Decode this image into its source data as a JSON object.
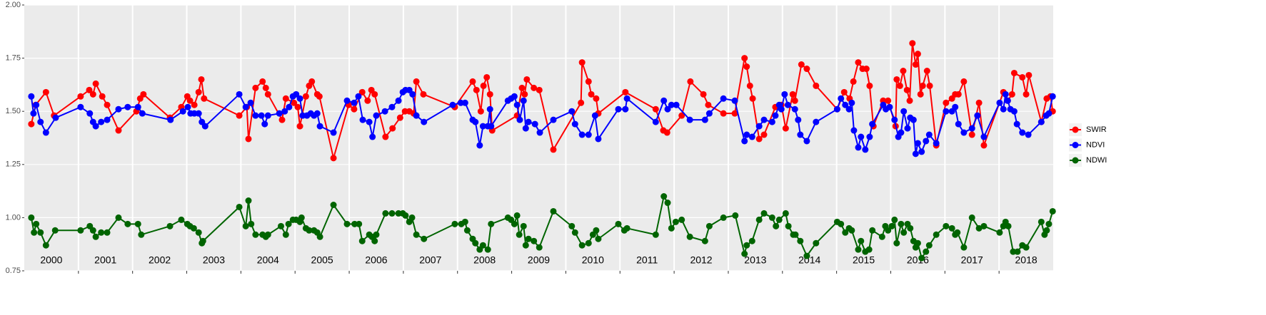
{
  "chart_data": {
    "type": "line",
    "xlim": [
      2000,
      2019
    ],
    "ylim": [
      0.75,
      2.0
    ],
    "yticks": [
      {
        "value": 0.75,
        "label": "0.75"
      },
      {
        "value": 1.0,
        "label": "1.00"
      },
      {
        "value": 1.25,
        "label": "1.25"
      },
      {
        "value": 1.5,
        "label": "1.50"
      },
      {
        "value": 1.75,
        "label": "1.75"
      },
      {
        "value": 2.0,
        "label": "2.00"
      }
    ],
    "xticks": [
      {
        "value": 2000.5,
        "label": "2000"
      },
      {
        "value": 2001.5,
        "label": "2001"
      },
      {
        "value": 2002.5,
        "label": "2002"
      },
      {
        "value": 2003.5,
        "label": "2003"
      },
      {
        "value": 2004.5,
        "label": "2004"
      },
      {
        "value": 2005.5,
        "label": "2005"
      },
      {
        "value": 2006.5,
        "label": "2006"
      },
      {
        "value": 2007.5,
        "label": "2007"
      },
      {
        "value": 2008.5,
        "label": "2008"
      },
      {
        "value": 2009.5,
        "label": "2009"
      },
      {
        "value": 2010.5,
        "label": "2010"
      },
      {
        "value": 2011.5,
        "label": "2011"
      },
      {
        "value": 2012.5,
        "label": "2012"
      },
      {
        "value": 2013.5,
        "label": "2013"
      },
      {
        "value": 2014.5,
        "label": "2014"
      },
      {
        "value": 2015.5,
        "label": "2015"
      },
      {
        "value": 2016.5,
        "label": "2016"
      },
      {
        "value": 2017.5,
        "label": "2017"
      },
      {
        "value": 2018.5,
        "label": "2018"
      }
    ],
    "grid": true,
    "legend_position": "right",
    "series": [
      {
        "name": "SWIR",
        "color": "#ff0000",
        "x": [
          2000.13,
          2000.21,
          2000.4,
          2000.55,
          2001.04,
          2001.2,
          2001.27,
          2001.32,
          2001.44,
          2001.53,
          2001.74,
          2002.07,
          2002.14,
          2002.2,
          2002.69,
          2002.9,
          2003.01,
          2003.06,
          2003.14,
          2003.22,
          2003.27,
          2003.32,
          2003.97,
          2004.11,
          2004.14,
          2004.27,
          2004.4,
          2004.46,
          2004.5,
          2004.76,
          2004.83,
          2004.98,
          2005.05,
          2005.09,
          2005.2,
          2005.26,
          2005.31,
          2005.41,
          2005.45,
          2005.71,
          2005.99,
          2006.09,
          2006.24,
          2006.34,
          2006.41,
          2006.47,
          2006.67,
          2006.8,
          2006.94,
          2007.03,
          2007.11,
          2007.19,
          2007.24,
          2007.37,
          2007.95,
          2008.28,
          2008.35,
          2008.43,
          2008.48,
          2008.54,
          2008.6,
          2008.64,
          2009.1,
          2009.19,
          2009.24,
          2009.28,
          2009.41,
          2009.51,
          2009.77,
          2010.28,
          2010.3,
          2010.42,
          2010.47,
          2010.56,
          2010.6,
          2011.1,
          2011.66,
          2011.8,
          2011.87,
          2012.14,
          2012.3,
          2012.54,
          2012.63,
          2012.91,
          2013.12,
          2013.3,
          2013.34,
          2013.4,
          2013.45,
          2013.57,
          2013.66,
          2013.87,
          2013.98,
          2014.06,
          2014.19,
          2014.23,
          2014.35,
          2014.45,
          2014.62,
          2015.01,
          2015.14,
          2015.24,
          2015.31,
          2015.4,
          2015.48,
          2015.55,
          2015.61,
          2015.68,
          2015.86,
          2015.95,
          2016.09,
          2016.11,
          2016.17,
          2016.23,
          2016.3,
          2016.35,
          2016.4,
          2016.46,
          2016.5,
          2016.55,
          2016.59,
          2016.67,
          2016.72,
          2016.84,
          2017.02,
          2017.13,
          2017.19,
          2017.25,
          2017.35,
          2017.5,
          2017.63,
          2017.72,
          2018.08,
          2018.16,
          2018.24,
          2018.28,
          2018.43,
          2018.5,
          2018.55,
          2018.78,
          2018.88,
          2018.95,
          2018.99
        ],
        "values": [
          1.44,
          1.53,
          1.59,
          1.48,
          1.57,
          1.6,
          1.58,
          1.63,
          1.57,
          1.53,
          1.41,
          1.5,
          1.56,
          1.58,
          1.47,
          1.52,
          1.57,
          1.55,
          1.53,
          1.59,
          1.65,
          1.56,
          1.48,
          1.52,
          1.37,
          1.61,
          1.64,
          1.61,
          1.58,
          1.46,
          1.56,
          1.54,
          1.52,
          1.43,
          1.57,
          1.62,
          1.64,
          1.58,
          1.57,
          1.28,
          1.53,
          1.51,
          1.59,
          1.55,
          1.6,
          1.58,
          1.38,
          1.42,
          1.47,
          1.5,
          1.5,
          1.49,
          1.64,
          1.58,
          1.52,
          1.64,
          1.6,
          1.5,
          1.62,
          1.66,
          1.58,
          1.41,
          1.48,
          1.61,
          1.58,
          1.65,
          1.61,
          1.6,
          1.32,
          1.54,
          1.73,
          1.64,
          1.58,
          1.56,
          1.49,
          1.59,
          1.51,
          1.41,
          1.4,
          1.48,
          1.64,
          1.58,
          1.53,
          1.49,
          1.49,
          1.75,
          1.71,
          1.62,
          1.56,
          1.37,
          1.39,
          1.52,
          1.53,
          1.42,
          1.58,
          1.55,
          1.72,
          1.7,
          1.62,
          1.51,
          1.59,
          1.56,
          1.64,
          1.73,
          1.7,
          1.7,
          1.62,
          1.43,
          1.55,
          1.55,
          1.43,
          1.65,
          1.62,
          1.69,
          1.6,
          1.55,
          1.82,
          1.72,
          1.77,
          1.58,
          1.62,
          1.69,
          1.62,
          1.34,
          1.54,
          1.56,
          1.58,
          1.58,
          1.64,
          1.39,
          1.54,
          1.34,
          1.59,
          1.55,
          1.58,
          1.68,
          1.66,
          1.58,
          1.67,
          1.45,
          1.56,
          1.57,
          1.5
        ]
      },
      {
        "name": "NDVI",
        "color": "#0000ff",
        "x": [
          2000.13,
          2000.17,
          2000.22,
          2000.3,
          2000.4,
          2000.58,
          2001.04,
          2001.21,
          2001.27,
          2001.32,
          2001.42,
          2001.53,
          2001.74,
          2001.91,
          2002.1,
          2002.18,
          2002.7,
          2002.93,
          2003.02,
          2003.07,
          2003.14,
          2003.22,
          2003.28,
          2003.34,
          2003.97,
          2004.09,
          2004.18,
          2004.27,
          2004.38,
          2004.44,
          2004.5,
          2004.71,
          2004.81,
          2004.89,
          2004.96,
          2005.02,
          2005.09,
          2005.14,
          2005.22,
          2005.29,
          2005.35,
          2005.41,
          2005.46,
          2005.71,
          2005.96,
          2006.09,
          2006.17,
          2006.25,
          2006.37,
          2006.43,
          2006.5,
          2006.66,
          2006.79,
          2006.91,
          2006.99,
          2007.04,
          2007.11,
          2007.17,
          2007.24,
          2007.38,
          2007.91,
          2008.06,
          2008.14,
          2008.28,
          2008.33,
          2008.41,
          2008.47,
          2008.56,
          2008.6,
          2008.62,
          2008.93,
          2008.99,
          2009.05,
          2009.1,
          2009.15,
          2009.22,
          2009.26,
          2009.31,
          2009.43,
          2009.52,
          2009.77,
          2010.11,
          2010.17,
          2010.3,
          2010.42,
          2010.54,
          2010.6,
          2010.97,
          2011.1,
          2011.13,
          2011.66,
          2011.81,
          2011.88,
          2011.95,
          2012.04,
          2012.29,
          2012.57,
          2012.65,
          2012.91,
          2013.12,
          2013.3,
          2013.34,
          2013.44,
          2013.57,
          2013.66,
          2013.81,
          2013.87,
          2013.94,
          2013.98,
          2014.04,
          2014.1,
          2014.23,
          2014.29,
          2014.33,
          2014.45,
          2014.62,
          2015.01,
          2015.08,
          2015.16,
          2015.23,
          2015.28,
          2015.32,
          2015.4,
          2015.45,
          2015.53,
          2015.61,
          2015.66,
          2015.86,
          2015.91,
          2015.98,
          2016.07,
          2016.14,
          2016.19,
          2016.24,
          2016.31,
          2016.36,
          2016.42,
          2016.46,
          2016.5,
          2016.57,
          2016.65,
          2016.71,
          2016.84,
          2017.02,
          2017.13,
          2017.19,
          2017.25,
          2017.35,
          2017.5,
          2017.6,
          2017.72,
          2018.01,
          2018.08,
          2018.12,
          2018.16,
          2018.21,
          2018.28,
          2018.33,
          2018.43,
          2018.54,
          2018.78,
          2018.87,
          2018.92,
          2018.99
        ],
        "values": [
          1.57,
          1.49,
          1.53,
          1.45,
          1.4,
          1.47,
          1.52,
          1.49,
          1.45,
          1.43,
          1.45,
          1.46,
          1.51,
          1.52,
          1.52,
          1.49,
          1.46,
          1.5,
          1.52,
          1.49,
          1.49,
          1.49,
          1.45,
          1.43,
          1.58,
          1.52,
          1.54,
          1.48,
          1.48,
          1.44,
          1.48,
          1.49,
          1.5,
          1.52,
          1.57,
          1.58,
          1.56,
          1.48,
          1.48,
          1.49,
          1.48,
          1.49,
          1.43,
          1.4,
          1.55,
          1.54,
          1.57,
          1.46,
          1.45,
          1.38,
          1.48,
          1.5,
          1.52,
          1.55,
          1.59,
          1.6,
          1.6,
          1.58,
          1.48,
          1.45,
          1.53,
          1.54,
          1.54,
          1.46,
          1.45,
          1.34,
          1.43,
          1.43,
          1.51,
          1.43,
          1.55,
          1.56,
          1.57,
          1.53,
          1.46,
          1.55,
          1.42,
          1.45,
          1.44,
          1.4,
          1.46,
          1.5,
          1.44,
          1.39,
          1.39,
          1.48,
          1.37,
          1.51,
          1.51,
          1.56,
          1.45,
          1.55,
          1.51,
          1.53,
          1.53,
          1.46,
          1.46,
          1.49,
          1.56,
          1.55,
          1.36,
          1.39,
          1.38,
          1.43,
          1.46,
          1.45,
          1.48,
          1.53,
          1.51,
          1.58,
          1.53,
          1.51,
          1.46,
          1.39,
          1.36,
          1.45,
          1.51,
          1.56,
          1.53,
          1.51,
          1.54,
          1.41,
          1.33,
          1.38,
          1.32,
          1.38,
          1.44,
          1.53,
          1.51,
          1.52,
          1.46,
          1.38,
          1.4,
          1.5,
          1.42,
          1.47,
          1.46,
          1.3,
          1.35,
          1.31,
          1.36,
          1.39,
          1.35,
          1.5,
          1.5,
          1.52,
          1.44,
          1.4,
          1.42,
          1.48,
          1.38,
          1.54,
          1.51,
          1.58,
          1.55,
          1.51,
          1.5,
          1.44,
          1.4,
          1.39,
          1.45,
          1.48,
          1.49,
          1.57
        ]
      },
      {
        "name": "NDWI",
        "color": "#006400",
        "x": [
          2000.13,
          2000.18,
          2000.22,
          2000.3,
          2000.4,
          2000.57,
          2001.04,
          2001.21,
          2001.27,
          2001.32,
          2001.42,
          2001.53,
          2001.74,
          2001.91,
          2002.1,
          2002.16,
          2002.69,
          2002.9,
          2003.01,
          2003.06,
          2003.13,
          2003.22,
          2003.28,
          2003.3,
          2003.97,
          2004.09,
          2004.14,
          2004.19,
          2004.27,
          2004.4,
          2004.46,
          2004.5,
          2004.74,
          2004.83,
          2004.88,
          2004.96,
          2005.02,
          2005.09,
          2005.12,
          2005.2,
          2005.26,
          2005.35,
          2005.41,
          2005.46,
          2005.71,
          2005.96,
          2006.1,
          2006.18,
          2006.24,
          2006.37,
          2006.42,
          2006.47,
          2006.5,
          2006.67,
          2006.79,
          2006.91,
          2006.99,
          2007.04,
          2007.11,
          2007.16,
          2007.24,
          2007.38,
          2007.95,
          2008.07,
          2008.14,
          2008.18,
          2008.28,
          2008.33,
          2008.41,
          2008.47,
          2008.56,
          2008.62,
          2008.93,
          2008.99,
          2009.05,
          2009.1,
          2009.14,
          2009.22,
          2009.26,
          2009.31,
          2009.41,
          2009.51,
          2009.77,
          2010.11,
          2010.17,
          2010.3,
          2010.42,
          2010.5,
          2010.56,
          2010.6,
          2010.97,
          2011.08,
          2011.13,
          2011.66,
          2011.81,
          2011.88,
          2011.95,
          2012.03,
          2012.14,
          2012.29,
          2012.57,
          2012.65,
          2012.91,
          2013.13,
          2013.3,
          2013.34,
          2013.44,
          2013.57,
          2013.66,
          2013.81,
          2013.88,
          2013.94,
          2014.06,
          2014.11,
          2014.2,
          2014.24,
          2014.33,
          2014.45,
          2014.62,
          2015.01,
          2015.08,
          2015.16,
          2015.23,
          2015.28,
          2015.4,
          2015.45,
          2015.53,
          2015.6,
          2015.66,
          2015.84,
          2015.9,
          2015.95,
          2016.02,
          2016.07,
          2016.11,
          2016.19,
          2016.24,
          2016.31,
          2016.36,
          2016.42,
          2016.46,
          2016.5,
          2016.57,
          2016.65,
          2016.71,
          2016.84,
          2017.02,
          2017.13,
          2017.19,
          2017.23,
          2017.35,
          2017.5,
          2017.63,
          2017.72,
          2018.01,
          2018.08,
          2018.12,
          2018.17,
          2018.26,
          2018.34,
          2018.43,
          2018.5,
          2018.78,
          2018.84,
          2018.88,
          2018.92,
          2018.99
        ],
        "values": [
          1.0,
          0.93,
          0.97,
          0.93,
          0.87,
          0.94,
          0.94,
          0.96,
          0.94,
          0.91,
          0.93,
          0.93,
          1.0,
          0.97,
          0.97,
          0.92,
          0.96,
          0.99,
          0.97,
          0.96,
          0.95,
          0.93,
          0.88,
          0.89,
          1.05,
          0.96,
          1.08,
          0.97,
          0.92,
          0.92,
          0.91,
          0.92,
          0.96,
          0.92,
          0.97,
          0.99,
          0.99,
          0.98,
          1.0,
          0.95,
          0.94,
          0.94,
          0.93,
          0.91,
          1.06,
          0.97,
          0.97,
          0.97,
          0.89,
          0.92,
          0.91,
          0.89,
          0.92,
          1.02,
          1.02,
          1.02,
          1.02,
          1.01,
          0.98,
          1.0,
          0.92,
          0.9,
          0.97,
          0.97,
          0.98,
          0.94,
          0.9,
          0.88,
          0.85,
          0.87,
          0.85,
          0.97,
          1.0,
          0.99,
          0.97,
          1.01,
          0.92,
          0.96,
          0.87,
          0.9,
          0.89,
          0.86,
          1.03,
          0.96,
          0.93,
          0.87,
          0.88,
          0.92,
          0.94,
          0.9,
          0.97,
          0.94,
          0.95,
          0.92,
          1.1,
          1.07,
          0.95,
          0.98,
          0.99,
          0.91,
          0.89,
          0.96,
          1.0,
          1.01,
          0.83,
          0.87,
          0.89,
          0.99,
          1.02,
          1.0,
          0.96,
          0.99,
          1.02,
          0.96,
          0.92,
          0.92,
          0.89,
          0.82,
          0.88,
          0.98,
          0.97,
          0.93,
          0.95,
          0.94,
          0.85,
          0.89,
          0.84,
          0.85,
          0.94,
          0.91,
          0.96,
          0.94,
          0.96,
          0.99,
          0.88,
          0.97,
          0.93,
          0.97,
          0.95,
          0.89,
          0.86,
          0.88,
          0.81,
          0.84,
          0.87,
          0.92,
          0.96,
          0.95,
          0.92,
          0.93,
          0.86,
          1.0,
          0.95,
          0.96,
          0.93,
          0.96,
          0.98,
          0.96,
          0.84,
          0.84,
          0.87,
          0.86,
          0.98,
          0.92,
          0.94,
          0.97,
          1.03
        ]
      }
    ]
  }
}
